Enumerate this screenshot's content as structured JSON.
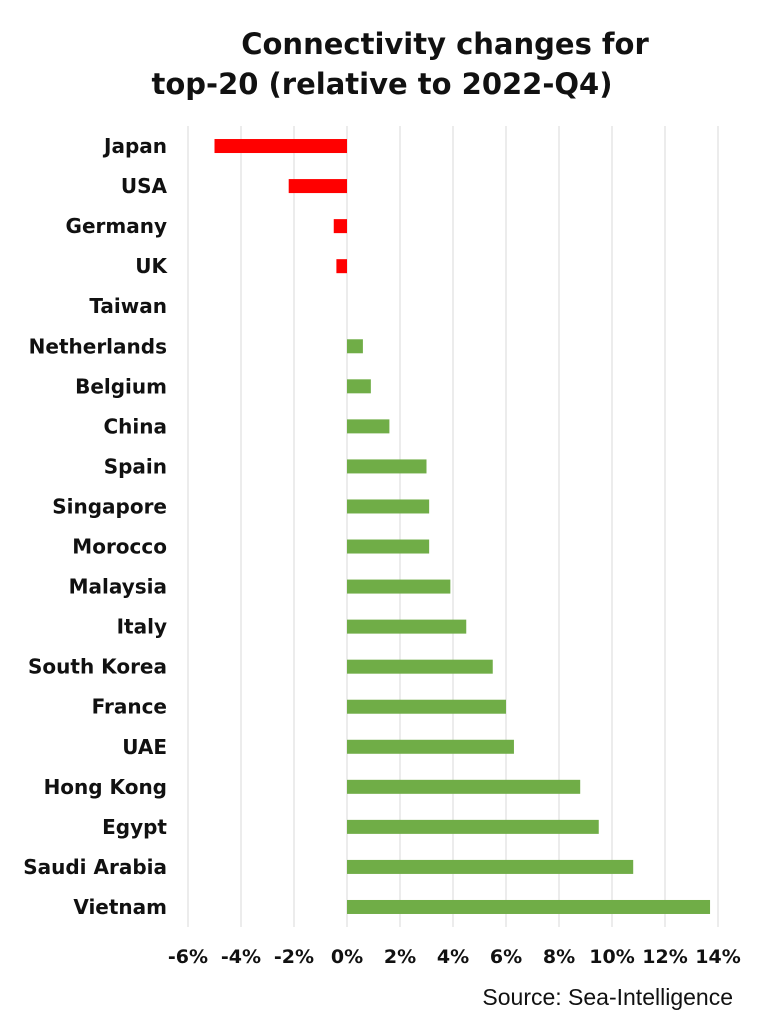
{
  "chart_data": {
    "type": "bar",
    "orientation": "horizontal",
    "title": [
      "Connectivity changes for",
      "top-20 (relative to 2022-Q4)"
    ],
    "categories": [
      "Japan",
      "USA",
      "Germany",
      "UK",
      "Taiwan",
      "Netherlands",
      "Belgium",
      "China",
      "Spain",
      "Singapore",
      "Morocco",
      "Malaysia",
      "Italy",
      "South Korea",
      "France",
      "UAE",
      "Hong Kong",
      "Egypt",
      "Saudi Arabia",
      "Vietnam"
    ],
    "values": [
      -5.0,
      -2.2,
      -0.5,
      -0.4,
      0.0,
      0.6,
      0.9,
      1.6,
      3.0,
      3.1,
      3.1,
      3.9,
      4.5,
      5.5,
      6.0,
      6.3,
      8.8,
      9.5,
      10.8,
      13.7
    ],
    "xlim": [
      -6,
      14
    ],
    "xticks": [
      -6,
      -4,
      -2,
      0,
      2,
      4,
      6,
      8,
      10,
      12,
      14
    ],
    "xtick_labels": [
      "-6%",
      "-4%",
      "-2%",
      "0%",
      "2%",
      "4%",
      "6%",
      "8%",
      "10%",
      "12%",
      "14%"
    ],
    "grid": "vertical",
    "colors": {
      "positive": "#70ad47",
      "negative": "#ff0000"
    },
    "source": "Source: Sea-Intelligence"
  }
}
